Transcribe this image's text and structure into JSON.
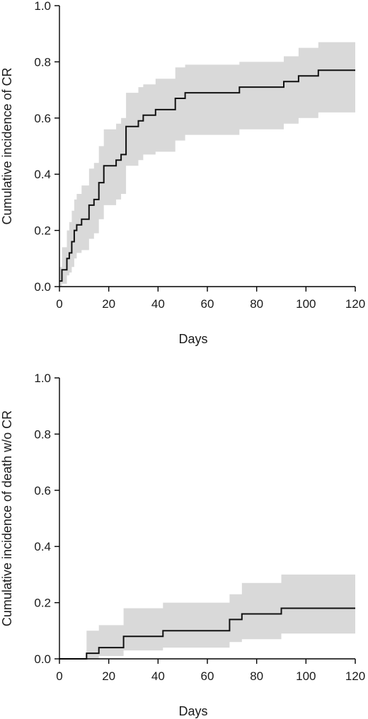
{
  "chart_data": [
    {
      "type": "line",
      "subtype": "step",
      "xlabel": "Days",
      "ylabel": "Cumulative incidence of CR",
      "xlim": [
        0,
        120
      ],
      "ylim": [
        0,
        1.0
      ],
      "x_ticks": [
        "0",
        "20",
        "40",
        "60",
        "80",
        "100",
        "120"
      ],
      "y_ticks": [
        "0.0",
        "0.2",
        "0.4",
        "0.6",
        "0.8",
        "1.0"
      ],
      "grid": false,
      "band_color": "#d9d9d9",
      "line_color": "#111111",
      "series": [
        {
          "x": [
            0,
            1,
            3,
            4,
            5,
            6,
            7,
            9,
            12,
            14,
            16,
            18,
            23,
            25,
            27,
            28,
            32,
            34,
            36,
            39,
            47,
            51,
            73,
            91,
            97,
            105,
            120
          ],
          "y": [
            0.02,
            0.06,
            0.1,
            0.12,
            0.16,
            0.2,
            0.22,
            0.24,
            0.29,
            0.31,
            0.37,
            0.43,
            0.45,
            0.47,
            0.57,
            0.57,
            0.59,
            0.61,
            0.61,
            0.63,
            0.67,
            0.69,
            0.71,
            0.73,
            0.75,
            0.77,
            0.77
          ],
          "lower": [
            0.0,
            0.01,
            0.04,
            0.05,
            0.07,
            0.1,
            0.12,
            0.13,
            0.17,
            0.19,
            0.24,
            0.29,
            0.31,
            0.33,
            0.43,
            0.43,
            0.45,
            0.47,
            0.47,
            0.48,
            0.52,
            0.54,
            0.56,
            0.58,
            0.6,
            0.62,
            0.62
          ],
          "upper": [
            0.07,
            0.14,
            0.2,
            0.23,
            0.27,
            0.31,
            0.33,
            0.36,
            0.42,
            0.44,
            0.5,
            0.56,
            0.58,
            0.6,
            0.69,
            0.69,
            0.71,
            0.72,
            0.72,
            0.74,
            0.78,
            0.79,
            0.8,
            0.82,
            0.85,
            0.87,
            0.87
          ]
        }
      ]
    },
    {
      "type": "line",
      "subtype": "step",
      "xlabel": "Days",
      "ylabel": "Cumulative incidence of death w/o CR",
      "xlim": [
        0,
        120
      ],
      "ylim": [
        0,
        1.0
      ],
      "x_ticks": [
        "0",
        "20",
        "40",
        "60",
        "80",
        "100",
        "120"
      ],
      "y_ticks": [
        "0.0",
        "0.2",
        "0.4",
        "0.6",
        "0.8",
        "1.0"
      ],
      "grid": false,
      "band_color": "#d9d9d9",
      "line_color": "#111111",
      "series": [
        {
          "x": [
            0,
            11,
            16,
            26,
            42,
            69,
            74,
            90,
            120
          ],
          "y": [
            0.0,
            0.02,
            0.04,
            0.08,
            0.1,
            0.14,
            0.16,
            0.18,
            0.18
          ],
          "lower": [
            0.0,
            0.0,
            0.01,
            0.03,
            0.04,
            0.06,
            0.07,
            0.09,
            0.09
          ],
          "upper": [
            0.0,
            0.1,
            0.12,
            0.18,
            0.2,
            0.23,
            0.27,
            0.3,
            0.3
          ]
        }
      ]
    }
  ]
}
